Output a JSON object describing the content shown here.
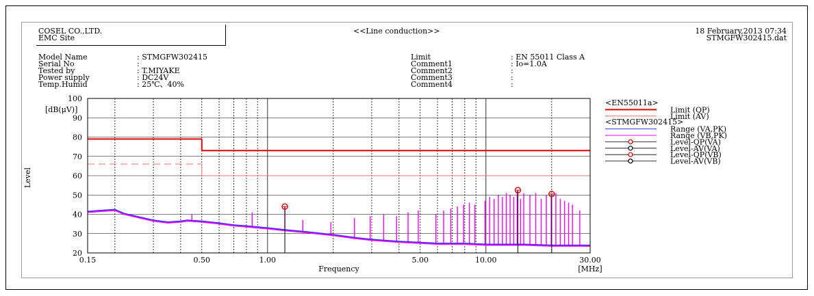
{
  "header": {
    "company": "COSEL CO.,LTD.",
    "site": "EMC Site",
    "test_title": "<<Line conduction>>",
    "datetime": "18 February,2013 07:34",
    "filename": "STMGFW302415.dat"
  },
  "info_left": [
    {
      "label": "Model Name",
      "value": ": STMGFW302415"
    },
    {
      "label": "Serial No",
      "value": ":"
    },
    {
      "label": "Tested by",
      "value": ": T.MIYAKE"
    },
    {
      "label": "Power supply",
      "value": ": DC24V"
    },
    {
      "label": "Temp.Humid",
      "value": ": 25℃、40%"
    }
  ],
  "info_right": [
    {
      "label": "Limit",
      "value": ": EN 55011 Class A"
    },
    {
      "label": "Comment1",
      "value": ": Io=1.0A"
    },
    {
      "label": "Comment2",
      "value": ":"
    },
    {
      "label": "Comment3",
      "value": ":"
    },
    {
      "label": "Comment4",
      "value": ":"
    }
  ],
  "colors": {
    "limit": "#e00000",
    "range_va": "#3030ff",
    "range_vb": "#ff00ff",
    "marker_qp": "#cc0000",
    "marker_av": "#000000"
  },
  "chart_data": {
    "type": "line",
    "title": "",
    "xlabel": "Frequency",
    "x_unit": "[MHz]",
    "ylabel": "Level",
    "y_unit": "[dB(μV)]",
    "x_scale": "log",
    "xlim": [
      0.15,
      30
    ],
    "ylim": [
      20,
      100
    ],
    "x_ticks": [
      {
        "value": 0.15,
        "label": "0.15"
      },
      {
        "value": 0.5,
        "label": "0.50"
      },
      {
        "value": 1,
        "label": "1.00"
      },
      {
        "value": 5,
        "label": "5.00"
      },
      {
        "value": 10,
        "label": "10.00"
      },
      {
        "value": 30,
        "label": "30.00"
      }
    ],
    "y_ticks": [
      20,
      30,
      40,
      50,
      60,
      70,
      80,
      90,
      100
    ],
    "grid": true,
    "legend_position": "right",
    "legend": [
      {
        "text": "<EN55011a>",
        "kind": "heading"
      },
      {
        "text": "Limit (QP)",
        "kind": "line",
        "color": "#e00000",
        "width": 2
      },
      {
        "text": "Limit (AV)",
        "kind": "line",
        "color": "#ff7070",
        "width": 1
      },
      {
        "text": "<STMGFW302415>",
        "kind": "heading"
      },
      {
        "text": "Range (VA,PK)",
        "kind": "line",
        "color": "#3030ff",
        "width": 1
      },
      {
        "text": "Range (VB,PK)",
        "kind": "line",
        "color": "#ff00ff",
        "width": 1
      },
      {
        "text": "Level-QP(VA)",
        "kind": "marker",
        "color": "#cc0000"
      },
      {
        "text": "Level-AV(VA)",
        "kind": "marker",
        "color": "#000000"
      },
      {
        "text": "Level-QP(VB)",
        "kind": "marker",
        "color": "#cc0000"
      },
      {
        "text": "Level-AV(VB)",
        "kind": "marker",
        "color": "#000000"
      }
    ],
    "limit_qp": [
      {
        "x": [
          0.15,
          0.5
        ],
        "y": 79
      },
      {
        "x": [
          0.5,
          30
        ],
        "y": 73
      }
    ],
    "limit_av": [
      {
        "x": [
          0.15,
          0.5
        ],
        "y": 66
      },
      {
        "x": [
          0.5,
          30
        ],
        "y": 60
      }
    ],
    "series": [
      {
        "name": "Range (VA,PK)",
        "x": [
          0.15,
          0.17,
          0.2,
          0.22,
          0.25,
          0.3,
          0.35,
          0.4,
          0.43,
          0.5,
          0.6,
          0.7,
          0.8,
          1.0,
          1.2,
          1.5,
          2.0,
          2.5,
          3.0,
          4.0,
          5.0,
          6.0,
          8.0,
          10.0,
          15.0,
          20.0,
          30.0
        ],
        "y": [
          41.5,
          42,
          42.5,
          40.5,
          39,
          37,
          36,
          36.5,
          37,
          36.5,
          35.5,
          34.5,
          34,
          33,
          32,
          31,
          29.5,
          28,
          27,
          26,
          25.5,
          25,
          25,
          24.5,
          24.5,
          24,
          24
        ]
      },
      {
        "name": "Range (VB,PK)",
        "x": [
          0.15,
          0.17,
          0.2,
          0.22,
          0.25,
          0.3,
          0.35,
          0.4,
          0.43,
          0.5,
          0.6,
          0.7,
          0.8,
          1.0,
          1.2,
          1.5,
          2.0,
          2.5,
          3.0,
          4.0,
          5.0,
          6.0,
          8.0,
          10.0,
          15.0,
          20.0,
          30.0
        ],
        "y": [
          41,
          41.5,
          42,
          40,
          38.5,
          36.5,
          35.5,
          36,
          36.5,
          36,
          35,
          34,
          33.5,
          32.5,
          31.5,
          30.5,
          29,
          27.5,
          26.5,
          25.5,
          25,
          24.5,
          24.5,
          24,
          24,
          23.5,
          23.5
        ]
      }
    ],
    "spikes": {
      "x": [
        0.45,
        0.85,
        1.2,
        1.45,
        1.95,
        2.5,
        2.95,
        3.4,
        3.9,
        4.4,
        4.9,
        5.9,
        6.4,
        6.9,
        7.4,
        7.9,
        8.4,
        8.9,
        9.9,
        10.4,
        10.9,
        11.4,
        11.9,
        12.4,
        12.9,
        13.4,
        13.9,
        14.4,
        14.9,
        15.9,
        16.9,
        17.9,
        18.9,
        19.9,
        20.9,
        21.9,
        22.9,
        23.9,
        24.9,
        26.9
      ],
      "y": [
        40,
        41,
        44,
        37,
        36,
        38,
        39,
        40,
        39,
        41,
        42,
        40,
        42,
        43,
        44,
        45,
        46,
        45,
        47,
        49,
        48,
        50,
        49,
        51,
        50,
        49,
        52,
        48,
        51,
        50,
        51,
        48,
        50,
        49,
        51,
        48,
        47,
        46,
        45,
        42
      ]
    },
    "markers": [
      {
        "x": 1.2,
        "y": 44,
        "kind": "QP"
      },
      {
        "x": 14.0,
        "y": 52.5,
        "kind": "QP"
      },
      {
        "x": 20.0,
        "y": 50.5,
        "kind": "QP"
      }
    ]
  }
}
